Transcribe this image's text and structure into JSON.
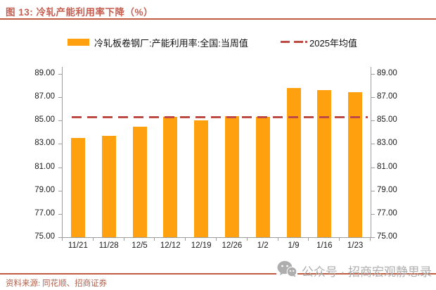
{
  "figure": {
    "title": "图 13: 冷轧产能利用率下降（%）",
    "source": "资料来源: 同花顺、招商证券",
    "watermark": "公众号 · 招商宏观静思录"
  },
  "legend": {
    "bar_label": "冷轧板卷钢厂:产能利用率:全国:当周值",
    "line_label": "2025年均值"
  },
  "colors": {
    "bar": "#FFA00E",
    "dash_line": "#BE4A45",
    "accent_rule": "#BF5B3E",
    "title_text": "#C75F51",
    "source_text": "#B0604E",
    "axis": "#9C9C9C",
    "axis_label": "#1A1A1A",
    "watermark": "#AEAEAE"
  },
  "chart_data": {
    "type": "bar",
    "title": "冷轧产能利用率下降（%）",
    "categories": [
      "11/21",
      "11/28",
      "12/5",
      "12/12",
      "12/19",
      "12/26",
      "1/2",
      "1/9",
      "1/16",
      "1/23"
    ],
    "series": [
      {
        "name": "冷轧板卷钢厂:产能利用率:全国:当周值",
        "values": [
          83.5,
          83.7,
          84.5,
          85.3,
          85.0,
          85.4,
          85.3,
          87.8,
          87.6,
          87.4
        ]
      }
    ],
    "reference_line": {
      "label": "2025年均值",
      "value": 85.3,
      "style": "dashed"
    },
    "xlabel": "",
    "ylabel": "",
    "ylim": [
      75,
      89.6
    ],
    "yticks": [
      75,
      77,
      79,
      81,
      83,
      85,
      87,
      89
    ],
    "ytick_decimals": 2,
    "dual_y_axis": true,
    "grid": false,
    "legend_position": "top"
  }
}
